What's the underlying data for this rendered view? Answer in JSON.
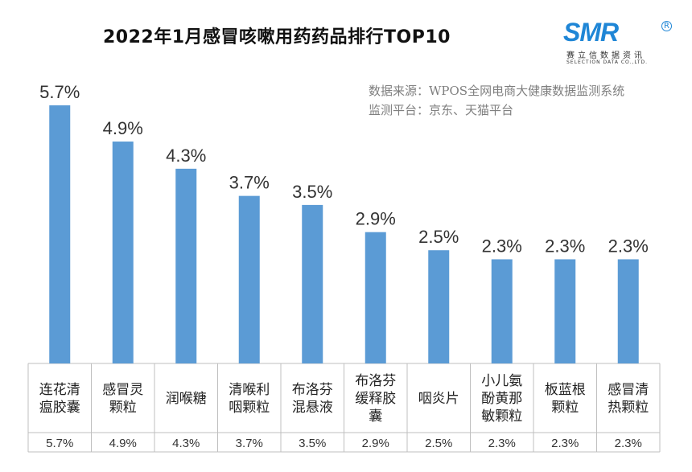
{
  "title": "2022年1月感冒咳嗽用药药品排行TOP10",
  "logo": {
    "mark": "SMR",
    "registered": "R",
    "cn": "赛立信数据资讯",
    "en": "SELECTION DATA CO.,LTD."
  },
  "source": {
    "line1": "数据来源：WPOS全网电商大健康数据监测系统",
    "line2": "监测平台：京东、天猫平台"
  },
  "colors": {
    "bar": "#5b9bd5",
    "grid": "#bfbfbf"
  },
  "chart_data": {
    "type": "bar",
    "title": "2022年1月感冒咳嗽用药药品排行TOP10",
    "categories": [
      [
        "连花清",
        "瘟胶囊"
      ],
      [
        "感冒灵",
        "颗粒"
      ],
      [
        "润喉糖"
      ],
      [
        "清喉利",
        "咽颗粒"
      ],
      [
        "布洛芬",
        "混悬液"
      ],
      [
        "布洛芬",
        "缓释胶",
        "囊"
      ],
      [
        "咽炎片"
      ],
      [
        "小儿氨",
        "酚黄那",
        "敏颗粒"
      ],
      [
        "板蓝根",
        "颗粒"
      ],
      [
        "感冒清",
        "热颗粒"
      ]
    ],
    "values": [
      5.7,
      4.9,
      4.3,
      3.7,
      3.5,
      2.9,
      2.5,
      2.3,
      2.3,
      2.3
    ],
    "value_labels": [
      "5.7%",
      "4.9%",
      "4.3%",
      "3.7%",
      "3.5%",
      "2.9%",
      "2.5%",
      "2.3%",
      "2.3%",
      "2.3%"
    ],
    "unit": "%",
    "ylim": [
      0,
      5.7
    ],
    "data_table": true,
    "legend": "none",
    "grid": false
  }
}
